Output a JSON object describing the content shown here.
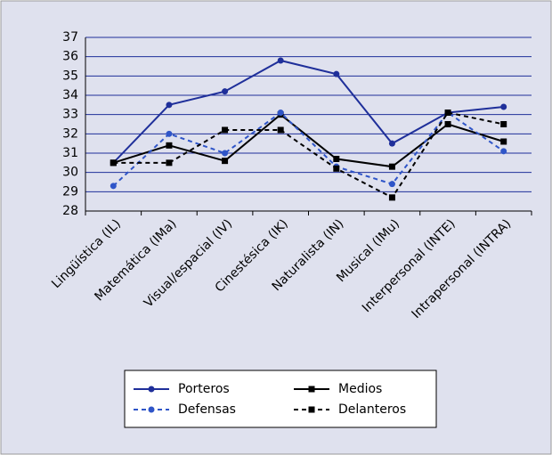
{
  "chart_data": {
    "type": "line",
    "categories": [
      "Lingüística (IL)",
      "Matemática (IMa)",
      "Visual/espacial (IV)",
      "Cinestésica (IK)",
      "Naturalista (IN)",
      "Musical (IMu)",
      "Interpersonal (INTE)",
      "Intrapersonal (INTRA)"
    ],
    "series": [
      {
        "name": "Porteros",
        "color": "#1f2f9a",
        "dashed": false,
        "marker": "circle",
        "values": [
          30.5,
          33.5,
          34.2,
          35.8,
          35.1,
          31.5,
          33.1,
          33.4
        ]
      },
      {
        "name": "Medios",
        "color": "#000000",
        "dashed": false,
        "marker": "square",
        "values": [
          30.5,
          31.4,
          30.6,
          33.0,
          30.7,
          30.3,
          32.5,
          31.6
        ]
      },
      {
        "name": "Defensas",
        "color": "#2f55c8",
        "dashed": true,
        "marker": "circle",
        "values": [
          29.3,
          32.0,
          31.0,
          33.1,
          30.3,
          29.4,
          33.1,
          31.1
        ]
      },
      {
        "name": "Delanteros",
        "color": "#000000",
        "dashed": true,
        "marker": "square",
        "values": [
          30.5,
          30.5,
          32.2,
          32.2,
          30.2,
          28.7,
          33.1,
          32.5
        ]
      }
    ],
    "ylim": [
      28,
      37
    ],
    "yticks": [
      28,
      29,
      30,
      31,
      32,
      33,
      34,
      35,
      36,
      37
    ],
    "grid": true,
    "legend": "bottom"
  }
}
